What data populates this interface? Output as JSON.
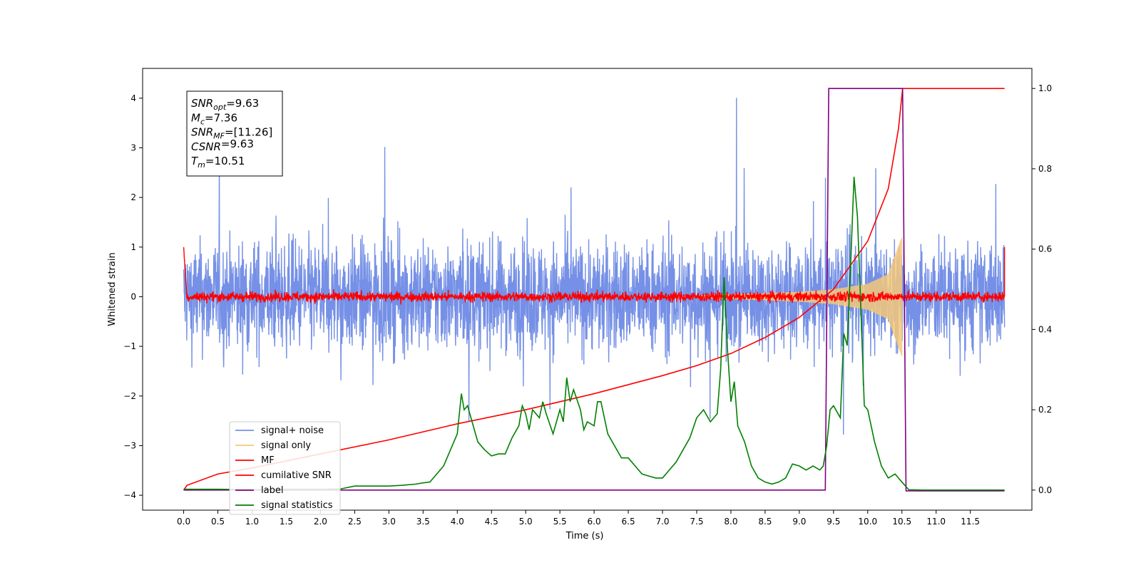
{
  "chart_data": {
    "type": "line",
    "xlabel": "Time (s)",
    "ylabel": "Whitened strain",
    "x_ticks": [
      "0.0",
      "0.5",
      "1.0",
      "1.5",
      "2.0",
      "2.5",
      "3.0",
      "3.5",
      "4.0",
      "4.5",
      "5.0",
      "5.5",
      "6.0",
      "6.5",
      "7.0",
      "7.5",
      "8.0",
      "8.5",
      "9.0",
      "9.5",
      "10.0",
      "10.5",
      "11.0",
      "11.5"
    ],
    "x_tick_values": [
      0.0,
      0.5,
      1.0,
      1.5,
      2.0,
      2.5,
      3.0,
      3.5,
      4.0,
      4.5,
      5.0,
      5.5,
      6.0,
      6.5,
      7.0,
      7.5,
      8.0,
      8.5,
      9.0,
      9.5,
      10.0,
      10.5,
      11.0,
      11.5
    ],
    "y_ticks": [
      "4",
      "3",
      "2",
      "1",
      "0",
      "−1",
      "−2",
      "−3",
      "−4"
    ],
    "y_tick_values": [
      4,
      3,
      2,
      1,
      0,
      -1,
      -2,
      -3,
      -4
    ],
    "y2_ticks": [
      "1.0",
      "0.8",
      "0.6",
      "0.4",
      "0.2",
      "0.0"
    ],
    "y2_tick_values": [
      1.0,
      0.8,
      0.6,
      0.4,
      0.2,
      0.0
    ],
    "xlim": [
      -0.6,
      12.4
    ],
    "ylim": [
      -4.3,
      4.6
    ],
    "y2lim": [
      -0.05,
      1.05
    ],
    "grid": false,
    "legend_position": "lower-left",
    "series": [
      {
        "name": "signal+ noise",
        "axis": "left",
        "color": "#7590e6",
        "noise_amplitude": 1.0,
        "spike_max": 4.17,
        "spike_min": -3.8
      },
      {
        "name": "signal only",
        "axis": "left",
        "color": "#f5c87a",
        "envelope": {
          "t": [
            7.5,
            8.5,
            9.0,
            9.5,
            10.0,
            10.3,
            10.5
          ],
          "amplitude": [
            0.03,
            0.07,
            0.1,
            0.15,
            0.26,
            0.45,
            1.2
          ]
        }
      },
      {
        "name": "MF",
        "axis": "left",
        "color": "#ff0000",
        "noise_amplitude": 0.1,
        "edge_value": 1.0
      },
      {
        "name": "cumilative SNR",
        "axis": "right",
        "color": "#ff0000",
        "x": [
          0.0,
          0.05,
          0.5,
          1.0,
          2.0,
          3.0,
          4.0,
          5.0,
          6.0,
          7.0,
          7.5,
          8.0,
          8.5,
          9.0,
          9.5,
          10.0,
          10.3,
          10.45,
          10.51,
          12.0
        ],
        "y": [
          0.0,
          0.012,
          0.04,
          0.055,
          0.09,
          0.125,
          0.165,
          0.2,
          0.24,
          0.285,
          0.31,
          0.34,
          0.38,
          0.43,
          0.5,
          0.62,
          0.75,
          0.9,
          1.0,
          1.0
        ]
      },
      {
        "name": "label",
        "axis": "right",
        "color": "#800080",
        "x": [
          0.0,
          9.38,
          9.43,
          10.51,
          10.56,
          12.0
        ],
        "y": [
          0.0,
          0.0,
          1.0,
          1.0,
          -0.002,
          -0.002
        ]
      },
      {
        "name": "signal statistics",
        "axis": "right",
        "color": "#008000",
        "x": [
          0.0,
          0.5,
          1.0,
          1.5,
          2.0,
          2.3,
          2.5,
          2.8,
          3.0,
          3.2,
          3.4,
          3.5,
          3.6,
          3.7,
          3.8,
          3.9,
          4.0,
          4.06,
          4.1,
          4.15,
          4.2,
          4.3,
          4.4,
          4.5,
          4.6,
          4.7,
          4.8,
          4.9,
          4.95,
          5.0,
          5.05,
          5.1,
          5.2,
          5.25,
          5.3,
          5.4,
          5.5,
          5.55,
          5.6,
          5.65,
          5.7,
          5.8,
          5.85,
          5.9,
          6.0,
          6.05,
          6.1,
          6.2,
          6.3,
          6.4,
          6.5,
          6.6,
          6.7,
          6.8,
          6.9,
          7.0,
          7.1,
          7.2,
          7.3,
          7.4,
          7.5,
          7.6,
          7.7,
          7.8,
          7.85,
          7.9,
          7.95,
          8.0,
          8.05,
          8.1,
          8.2,
          8.3,
          8.4,
          8.5,
          8.6,
          8.7,
          8.8,
          8.9,
          9.0,
          9.1,
          9.2,
          9.3,
          9.35,
          9.4,
          9.45,
          9.5,
          9.6,
          9.65,
          9.7,
          9.75,
          9.8,
          9.85,
          9.9,
          9.95,
          10.0,
          10.1,
          10.2,
          10.3,
          10.4,
          10.5,
          10.6,
          10.8,
          11.0,
          12.0
        ],
        "y": [
          0.002,
          0.002,
          0.001,
          0.002,
          0.002,
          0.003,
          0.01,
          0.01,
          0.01,
          0.012,
          0.015,
          0.018,
          0.02,
          0.04,
          0.06,
          0.1,
          0.14,
          0.24,
          0.2,
          0.21,
          0.18,
          0.12,
          0.1,
          0.085,
          0.09,
          0.09,
          0.13,
          0.16,
          0.21,
          0.19,
          0.15,
          0.2,
          0.18,
          0.22,
          0.19,
          0.14,
          0.2,
          0.17,
          0.28,
          0.22,
          0.25,
          0.2,
          0.15,
          0.17,
          0.16,
          0.22,
          0.22,
          0.14,
          0.11,
          0.08,
          0.08,
          0.06,
          0.04,
          0.035,
          0.03,
          0.03,
          0.05,
          0.07,
          0.1,
          0.13,
          0.18,
          0.2,
          0.17,
          0.19,
          0.3,
          0.53,
          0.35,
          0.22,
          0.27,
          0.16,
          0.12,
          0.06,
          0.03,
          0.02,
          0.015,
          0.02,
          0.03,
          0.065,
          0.06,
          0.05,
          0.06,
          0.05,
          0.06,
          0.11,
          0.2,
          0.21,
          0.18,
          0.39,
          0.36,
          0.56,
          0.78,
          0.68,
          0.45,
          0.21,
          0.2,
          0.12,
          0.06,
          0.03,
          0.04,
          0.02,
          0.001,
          0.0,
          0.0,
          0.0
        ]
      }
    ],
    "annotation": {
      "lines": [
        {
          "base": "SNR",
          "sub": "opt",
          "value": "=9.63"
        },
        {
          "base": "M",
          "sub": "c",
          "value": "=7.36"
        },
        {
          "base": "SNR",
          "sub": "MF",
          "value": "=[11.26]"
        },
        {
          "base": "CSNR",
          "sub": "",
          "value": "=9.63"
        },
        {
          "base": "T",
          "sub": "m",
          "value": "=10.51"
        }
      ]
    }
  }
}
